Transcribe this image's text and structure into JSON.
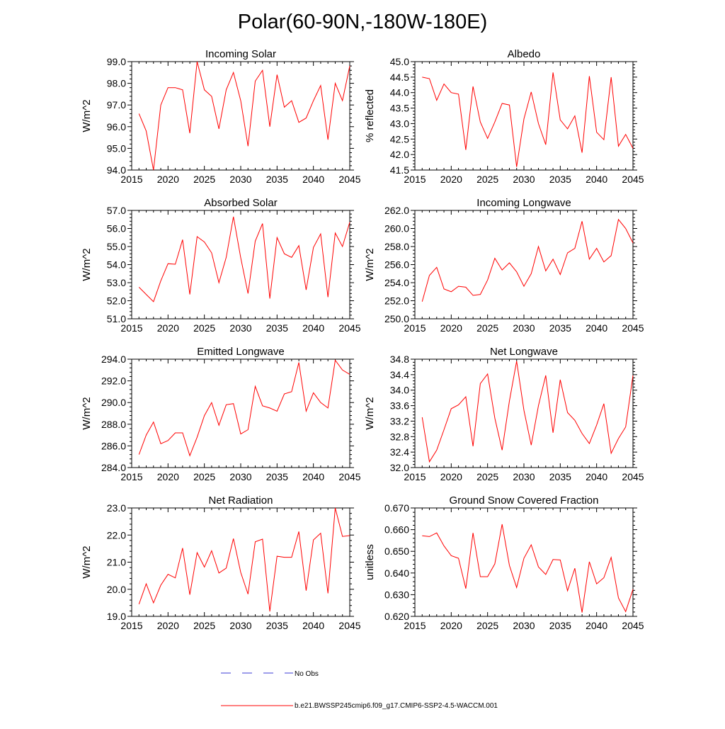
{
  "title": "Polar(60-90N,-180W-180E)",
  "legend": [
    {
      "label": "No Obs",
      "color": "#3b3bd6",
      "dash": true
    },
    {
      "label": "b.e21.BWSSP245cmip6.f09_g17.CMIP6-SSP2-4.5-WACCM.001",
      "color": "#ff0000",
      "dash": false
    }
  ],
  "chart_data": [
    {
      "type": "line",
      "title": "Incoming Solar",
      "ylabel": "W/m^2",
      "xlabel": "",
      "xlim": [
        2015,
        2045
      ],
      "ylim": [
        94.0,
        99.0
      ],
      "xticks": [
        2015,
        2020,
        2025,
        2030,
        2035,
        2040,
        2045
      ],
      "yticks": [
        "94.0",
        "95.0",
        "96.0",
        "97.0",
        "98.0",
        "99.0"
      ],
      "x": [
        2016,
        2017,
        2018,
        2019,
        2020,
        2021,
        2022,
        2023,
        2024,
        2025,
        2026,
        2027,
        2028,
        2029,
        2030,
        2031,
        2032,
        2033,
        2034,
        2035,
        2036,
        2037,
        2038,
        2039,
        2040,
        2041,
        2042,
        2043,
        2044,
        2045
      ],
      "values": [
        96.6,
        95.8,
        94.0,
        97.0,
        97.8,
        97.8,
        97.7,
        95.7,
        99.0,
        97.7,
        97.4,
        95.9,
        97.7,
        98.5,
        97.2,
        95.1,
        98.1,
        98.6,
        96.0,
        98.4,
        96.9,
        97.2,
        96.2,
        96.4,
        97.2,
        97.9,
        95.4,
        98.0,
        97.2,
        98.8
      ],
      "series_name": "b.e21.BWSSP245cmip6.f09_g17.CMIP6-SSP2-4.5-WACCM.001"
    },
    {
      "type": "line",
      "title": "Albedo",
      "ylabel": "% reflected",
      "xlabel": "",
      "xlim": [
        2015,
        2045
      ],
      "ylim": [
        41.5,
        45.0
      ],
      "xticks": [
        2015,
        2020,
        2025,
        2030,
        2035,
        2040,
        2045
      ],
      "yticks": [
        "41.5",
        "42.0",
        "42.5",
        "43.0",
        "43.5",
        "44.0",
        "44.5",
        "45.0"
      ],
      "x": [
        2016,
        2017,
        2018,
        2019,
        2020,
        2021,
        2022,
        2023,
        2024,
        2025,
        2026,
        2027,
        2028,
        2029,
        2030,
        2031,
        2032,
        2033,
        2034,
        2035,
        2036,
        2037,
        2038,
        2039,
        2040,
        2041,
        2042,
        2043,
        2044,
        2045
      ],
      "values": [
        44.5,
        44.45,
        43.75,
        44.28,
        44.0,
        43.95,
        42.15,
        44.2,
        43.05,
        42.52,
        43.05,
        43.65,
        43.6,
        41.6,
        43.15,
        44.02,
        43.0,
        42.32,
        44.65,
        43.12,
        42.83,
        43.25,
        42.06,
        44.53,
        42.72,
        42.48,
        44.5,
        42.27,
        42.65,
        42.2
      ],
      "series_name": "b.e21.BWSSP245cmip6.f09_g17.CMIP6-SSP2-4.5-WACCM.001"
    },
    {
      "type": "line",
      "title": "Absorbed Solar",
      "ylabel": "W/m^2",
      "xlabel": "",
      "xlim": [
        2015,
        2045
      ],
      "ylim": [
        51.0,
        57.0
      ],
      "xticks": [
        2015,
        2020,
        2025,
        2030,
        2035,
        2040,
        2045
      ],
      "yticks": [
        "51.0",
        "52.0",
        "53.0",
        "54.0",
        "55.0",
        "56.0",
        "57.0"
      ],
      "x": [
        2016,
        2017,
        2018,
        2019,
        2020,
        2021,
        2022,
        2023,
        2024,
        2025,
        2026,
        2027,
        2028,
        2029,
        2030,
        2031,
        2032,
        2033,
        2034,
        2035,
        2036,
        2037,
        2038,
        2039,
        2040,
        2041,
        2042,
        2043,
        2044,
        2045
      ],
      "values": [
        52.75,
        52.35,
        51.95,
        53.1,
        54.05,
        54.02,
        55.38,
        52.35,
        55.55,
        55.25,
        54.65,
        53.0,
        54.4,
        56.65,
        54.38,
        52.4,
        55.3,
        56.27,
        52.12,
        55.5,
        54.6,
        54.4,
        55.05,
        52.6,
        54.95,
        55.7,
        52.2,
        55.75,
        55.0,
        56.35
      ],
      "series_name": "b.e21.BWSSP245cmip6.f09_g17.CMIP6-SSP2-4.5-WACCM.001"
    },
    {
      "type": "line",
      "title": "Incoming Longwave",
      "ylabel": "W/m^2",
      "xlabel": "",
      "xlim": [
        2015,
        2045
      ],
      "ylim": [
        250.0,
        262.0
      ],
      "xticks": [
        2015,
        2020,
        2025,
        2030,
        2035,
        2040,
        2045
      ],
      "yticks": [
        "250.0",
        "252.0",
        "254.0",
        "256.0",
        "258.0",
        "260.0",
        "262.0"
      ],
      "x": [
        2016,
        2017,
        2018,
        2019,
        2020,
        2021,
        2022,
        2023,
        2024,
        2025,
        2026,
        2027,
        2028,
        2029,
        2030,
        2031,
        2032,
        2033,
        2034,
        2035,
        2036,
        2037,
        2038,
        2039,
        2040,
        2041,
        2042,
        2043,
        2044,
        2045
      ],
      "values": [
        251.9,
        254.8,
        255.7,
        253.3,
        253.0,
        253.6,
        253.5,
        252.6,
        252.7,
        254.3,
        256.7,
        255.4,
        256.2,
        255.2,
        253.6,
        255.0,
        258.0,
        255.3,
        256.6,
        254.9,
        257.3,
        257.8,
        260.8,
        256.6,
        257.8,
        256.3,
        257.0,
        261.0,
        260.0,
        258.4
      ],
      "series_name": "b.e21.BWSSP245cmip6.f09_g17.CMIP6-SSP2-4.5-WACCM.001"
    },
    {
      "type": "line",
      "title": "Emitted Longwave",
      "ylabel": "W/m^2",
      "xlabel": "",
      "xlim": [
        2015,
        2045
      ],
      "ylim": [
        284.0,
        294.0
      ],
      "xticks": [
        2015,
        2020,
        2025,
        2030,
        2035,
        2040,
        2045
      ],
      "yticks": [
        "284.0",
        "286.0",
        "288.0",
        "290.0",
        "292.0",
        "294.0"
      ],
      "x": [
        2016,
        2017,
        2018,
        2019,
        2020,
        2021,
        2022,
        2023,
        2024,
        2025,
        2026,
        2027,
        2028,
        2029,
        2030,
        2031,
        2032,
        2033,
        2034,
        2035,
        2036,
        2037,
        2038,
        2039,
        2040,
        2041,
        2042,
        2043,
        2044,
        2045
      ],
      "values": [
        285.2,
        287.0,
        288.2,
        286.2,
        286.5,
        287.2,
        287.2,
        285.1,
        286.8,
        288.8,
        290.0,
        287.9,
        289.8,
        289.9,
        287.1,
        287.5,
        291.5,
        289.7,
        289.5,
        289.2,
        290.8,
        291.0,
        293.7,
        289.2,
        290.9,
        290.0,
        289.5,
        293.9,
        293.0,
        292.6
      ],
      "series_name": "b.e21.BWSSP245cmip6.f09_g17.CMIP6-SSP2-4.5-WACCM.001"
    },
    {
      "type": "line",
      "title": "Net Longwave",
      "ylabel": "W/m^2",
      "xlabel": "",
      "xlim": [
        2015,
        2045
      ],
      "ylim": [
        32.0,
        34.8
      ],
      "xticks": [
        2015,
        2020,
        2025,
        2030,
        2035,
        2040,
        2045
      ],
      "yticks": [
        "32.0",
        "32.4",
        "32.8",
        "33.2",
        "33.6",
        "34.0",
        "34.4",
        "34.8"
      ],
      "x": [
        2016,
        2017,
        2018,
        2019,
        2020,
        2021,
        2022,
        2023,
        2024,
        2025,
        2026,
        2027,
        2028,
        2029,
        2030,
        2031,
        2032,
        2033,
        2034,
        2035,
        2036,
        2037,
        2038,
        2039,
        2040,
        2041,
        2042,
        2043,
        2044,
        2045
      ],
      "values": [
        33.3,
        32.15,
        32.45,
        32.98,
        33.52,
        33.62,
        33.83,
        32.55,
        34.17,
        34.42,
        33.28,
        32.45,
        33.72,
        34.75,
        33.48,
        32.58,
        33.6,
        34.38,
        32.9,
        34.27,
        33.42,
        33.22,
        32.88,
        32.62,
        33.1,
        33.65,
        32.37,
        32.75,
        33.05,
        34.38
      ],
      "series_name": "b.e21.BWSSP245cmip6.f09_g17.CMIP6-SSP2-4.5-WACCM.001"
    },
    {
      "type": "line",
      "title": "Net Radiation",
      "ylabel": "W/m^2",
      "xlabel": "",
      "xlim": [
        2015,
        2045
      ],
      "ylim": [
        19.0,
        23.0
      ],
      "xticks": [
        2015,
        2020,
        2025,
        2030,
        2035,
        2040,
        2045
      ],
      "yticks": [
        "19.0",
        "20.0",
        "21.0",
        "22.0",
        "23.0"
      ],
      "x": [
        2016,
        2017,
        2018,
        2019,
        2020,
        2021,
        2022,
        2023,
        2024,
        2025,
        2026,
        2027,
        2028,
        2029,
        2030,
        2031,
        2032,
        2033,
        2034,
        2035,
        2036,
        2037,
        2038,
        2039,
        2040,
        2041,
        2042,
        2043,
        2044,
        2045
      ],
      "values": [
        19.45,
        20.2,
        19.5,
        20.15,
        20.55,
        20.42,
        21.52,
        19.8,
        21.35,
        20.82,
        21.42,
        20.6,
        20.78,
        21.87,
        20.62,
        19.82,
        21.75,
        21.85,
        19.18,
        21.22,
        21.18,
        21.18,
        22.13,
        19.95,
        21.82,
        22.07,
        19.85,
        23.0,
        21.95,
        21.98
      ],
      "series_name": "b.e21.BWSSP245cmip6.f09_g17.CMIP6-SSP2-4.5-WACCM.001"
    },
    {
      "type": "line",
      "title": "Ground Snow Covered Fraction",
      "ylabel": "unitless",
      "xlabel": "",
      "xlim": [
        2015,
        2045
      ],
      "ylim": [
        0.62,
        0.67
      ],
      "xticks": [
        2015,
        2020,
        2025,
        2030,
        2035,
        2040,
        2045
      ],
      "yticks": [
        "0.620",
        "0.630",
        "0.640",
        "0.650",
        "0.660",
        "0.670"
      ],
      "x": [
        2016,
        2017,
        2018,
        2019,
        2020,
        2021,
        2022,
        2023,
        2024,
        2025,
        2026,
        2027,
        2028,
        2029,
        2030,
        2031,
        2032,
        2033,
        2034,
        2035,
        2036,
        2037,
        2038,
        2039,
        2040,
        2041,
        2042,
        2043,
        2044,
        2045
      ],
      "values": [
        0.6572,
        0.6568,
        0.6585,
        0.6525,
        0.648,
        0.6468,
        0.6328,
        0.6585,
        0.6383,
        0.6383,
        0.6442,
        0.6625,
        0.6435,
        0.6333,
        0.6468,
        0.653,
        0.6428,
        0.6393,
        0.6462,
        0.646,
        0.6318,
        0.6422,
        0.6218,
        0.6452,
        0.635,
        0.6378,
        0.6472,
        0.6285,
        0.6222,
        0.6325
      ],
      "series_name": "b.e21.BWSSP245cmip6.f09_g17.CMIP6-SSP2-4.5-WACCM.001"
    }
  ]
}
